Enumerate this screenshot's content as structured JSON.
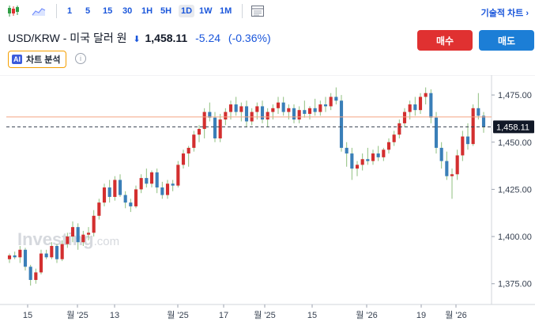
{
  "toolbar": {
    "intervals": [
      "1",
      "5",
      "15",
      "30",
      "1H",
      "5H",
      "1D",
      "1W",
      "1M"
    ],
    "active_interval": "1D",
    "technical_chart_link": "기술적 차트 ›",
    "icons": [
      "candlestick-icon",
      "area-chart-icon",
      "chart-layout-icon"
    ]
  },
  "headline": {
    "pair": "USD/KRW - 미국 달러 원",
    "direction_icon": "down-arrow-icon",
    "price": "1,458.11",
    "change": "-5.24",
    "change_pct": "(-0.36%)"
  },
  "actions": {
    "buy_label": "매수",
    "sell_label": "매도"
  },
  "ai_analysis": {
    "badge": "AI",
    "label": "차트 분석"
  },
  "watermark": {
    "text": "Investing",
    "suffix": ".com"
  },
  "colors": {
    "up": "#d32f2f",
    "down": "#3a7fb8",
    "accent": "#1a56db",
    "buy": "#e03131",
    "sell": "#1c7ed6"
  },
  "chart_data": {
    "type": "candlestick",
    "y_ticks": [
      "1,475.00",
      "1,450.00",
      "1,425.00",
      "1,400.00",
      "1,375.00"
    ],
    "y_tick_values": [
      1475,
      1450,
      1425,
      1400,
      1375
    ],
    "ylim": [
      1364,
      1483
    ],
    "x_tick_labels": [
      "15",
      "월 '25",
      "13",
      "월 '25",
      "17",
      "월 '25",
      "15",
      "월 '26",
      "19",
      "월 '26"
    ],
    "current_price": 1458.11,
    "current_price_label": "1,458.11",
    "reference_level": 1463.35,
    "candles": [
      [
        1388,
        1391,
        1386,
        1390
      ],
      [
        1390,
        1392,
        1388,
        1389
      ],
      [
        1389,
        1395,
        1386,
        1393
      ],
      [
        1393,
        1394,
        1382,
        1384
      ],
      [
        1384,
        1385,
        1374,
        1377
      ],
      [
        1377,
        1383,
        1375,
        1381
      ],
      [
        1381,
        1393,
        1380,
        1391
      ],
      [
        1391,
        1393,
        1388,
        1389
      ],
      [
        1389,
        1397,
        1388,
        1395
      ],
      [
        1395,
        1396,
        1386,
        1388
      ],
      [
        1388,
        1398,
        1387,
        1396
      ],
      [
        1396,
        1402,
        1394,
        1400
      ],
      [
        1400,
        1408,
        1397,
        1405
      ],
      [
        1405,
        1407,
        1393,
        1397
      ],
      [
        1397,
        1403,
        1395,
        1401
      ],
      [
        1401,
        1405,
        1398,
        1402
      ],
      [
        1402,
        1414,
        1400,
        1411
      ],
      [
        1411,
        1420,
        1409,
        1418
      ],
      [
        1418,
        1428,
        1416,
        1426
      ],
      [
        1426,
        1430,
        1418,
        1421
      ],
      [
        1421,
        1432,
        1419,
        1430
      ],
      [
        1430,
        1433,
        1421,
        1422
      ],
      [
        1422,
        1424,
        1415,
        1418
      ],
      [
        1418,
        1420,
        1413,
        1416
      ],
      [
        1416,
        1427,
        1415,
        1425
      ],
      [
        1425,
        1433,
        1423,
        1431
      ],
      [
        1431,
        1436,
        1426,
        1428
      ],
      [
        1428,
        1435,
        1426,
        1434
      ],
      [
        1434,
        1436,
        1423,
        1426
      ],
      [
        1426,
        1429,
        1420,
        1422
      ],
      [
        1422,
        1430,
        1420,
        1428
      ],
      [
        1428,
        1430,
        1424,
        1427
      ],
      [
        1427,
        1440,
        1426,
        1438
      ],
      [
        1438,
        1446,
        1436,
        1444
      ],
      [
        1444,
        1448,
        1437,
        1447
      ],
      [
        1447,
        1456,
        1445,
        1454
      ],
      [
        1454,
        1459,
        1450,
        1457
      ],
      [
        1457,
        1468,
        1452,
        1466
      ],
      [
        1466,
        1471,
        1461,
        1463
      ],
      [
        1463,
        1466,
        1450,
        1452
      ],
      [
        1452,
        1465,
        1450,
        1462
      ],
      [
        1462,
        1468,
        1459,
        1466
      ],
      [
        1466,
        1472,
        1462,
        1470
      ],
      [
        1470,
        1474,
        1464,
        1466
      ],
      [
        1466,
        1471,
        1461,
        1469
      ],
      [
        1469,
        1472,
        1458,
        1461
      ],
      [
        1461,
        1468,
        1459,
        1466
      ],
      [
        1466,
        1471,
        1462,
        1469
      ],
      [
        1469,
        1472,
        1460,
        1462
      ],
      [
        1462,
        1468,
        1458,
        1466
      ],
      [
        1466,
        1470,
        1462,
        1468
      ],
      [
        1468,
        1474,
        1465,
        1471
      ],
      [
        1471,
        1474,
        1464,
        1466
      ],
      [
        1466,
        1470,
        1462,
        1468
      ],
      [
        1468,
        1470,
        1460,
        1462
      ],
      [
        1462,
        1469,
        1460,
        1467
      ],
      [
        1467,
        1472,
        1463,
        1465
      ],
      [
        1465,
        1469,
        1462,
        1468
      ],
      [
        1468,
        1473,
        1464,
        1466
      ],
      [
        1466,
        1472,
        1464,
        1470
      ],
      [
        1470,
        1474,
        1466,
        1469
      ],
      [
        1469,
        1476,
        1467,
        1474
      ],
      [
        1474,
        1479,
        1470,
        1472
      ],
      [
        1472,
        1475,
        1445,
        1447
      ],
      [
        1447,
        1450,
        1437,
        1444
      ],
      [
        1444,
        1447,
        1430,
        1436
      ],
      [
        1436,
        1440,
        1432,
        1438
      ],
      [
        1438,
        1444,
        1435,
        1441
      ],
      [
        1441,
        1447,
        1438,
        1440
      ],
      [
        1440,
        1446,
        1438,
        1444
      ],
      [
        1444,
        1448,
        1440,
        1442
      ],
      [
        1442,
        1447,
        1440,
        1446
      ],
      [
        1446,
        1452,
        1444,
        1450
      ],
      [
        1450,
        1456,
        1448,
        1454
      ],
      [
        1454,
        1462,
        1452,
        1460
      ],
      [
        1460,
        1468,
        1458,
        1466
      ],
      [
        1466,
        1472,
        1462,
        1470
      ],
      [
        1470,
        1474,
        1464,
        1467
      ],
      [
        1467,
        1476,
        1465,
        1474
      ],
      [
        1474,
        1479,
        1470,
        1476
      ],
      [
        1476,
        1478,
        1460,
        1463
      ],
      [
        1463,
        1466,
        1444,
        1447
      ],
      [
        1447,
        1450,
        1436,
        1440
      ],
      [
        1440,
        1445,
        1430,
        1432
      ],
      [
        1432,
        1436,
        1420,
        1433
      ],
      [
        1433,
        1446,
        1430,
        1443
      ],
      [
        1443,
        1456,
        1440,
        1453
      ],
      [
        1453,
        1460,
        1446,
        1449
      ],
      [
        1449,
        1470,
        1448,
        1468
      ],
      [
        1468,
        1476,
        1462,
        1464
      ],
      [
        1464,
        1466,
        1455,
        1458
      ]
    ]
  }
}
